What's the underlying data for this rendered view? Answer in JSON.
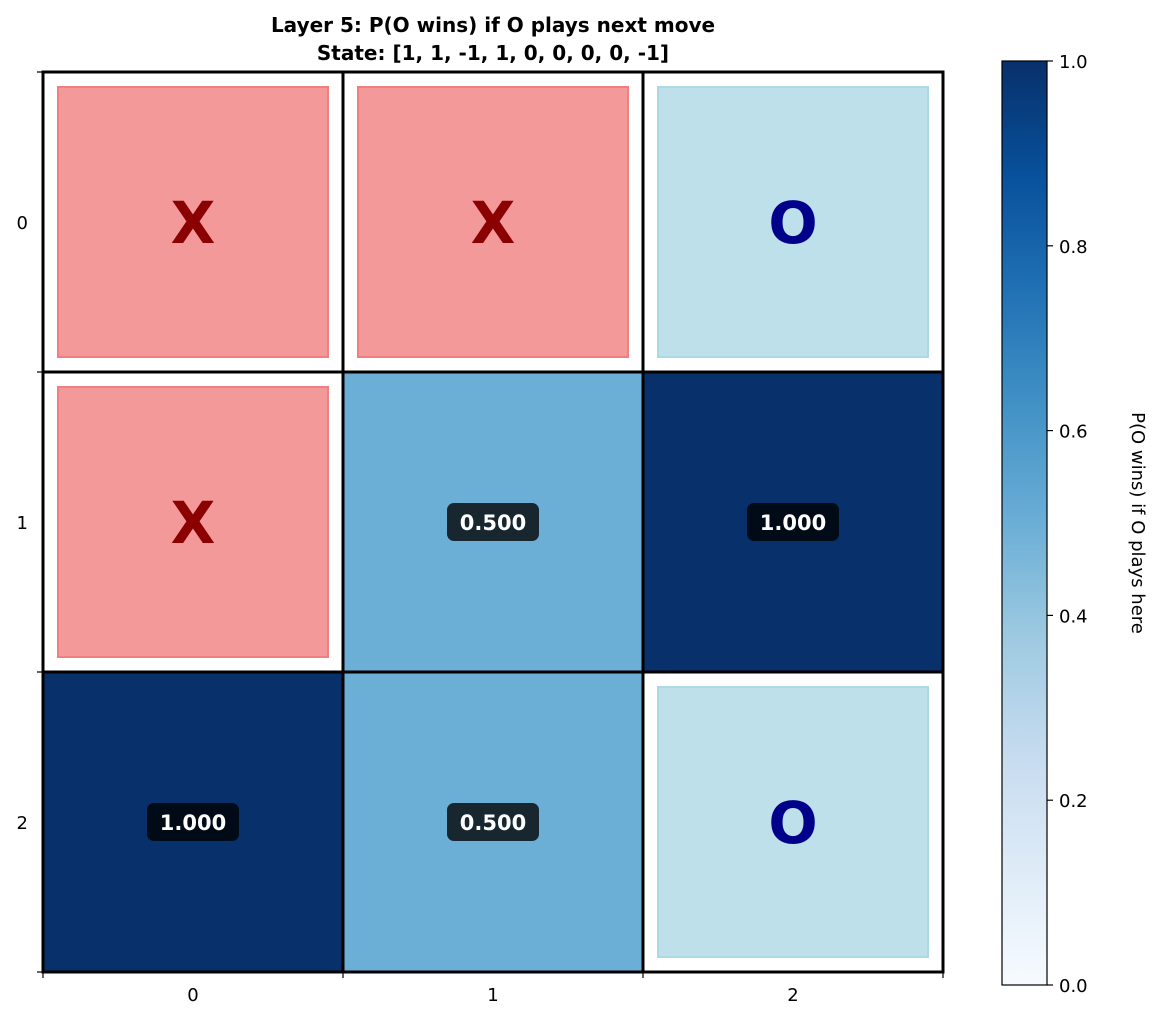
{
  "chart_data": {
    "type": "heatmap",
    "title": "Layer 5: P(O wins) if O plays next move",
    "subtitle": "State: [1, 1, -1, 1, 0, 0, 0, 0, -1]",
    "x_ticks": [
      "0",
      "1",
      "2"
    ],
    "y_ticks": [
      "0",
      "1",
      "2"
    ],
    "cells": [
      [
        {
          "piece": "X"
        },
        {
          "piece": "X"
        },
        {
          "piece": "O"
        }
      ],
      [
        {
          "piece": "X"
        },
        {
          "value": 0.5,
          "label": "0.500"
        },
        {
          "value": 1.0,
          "label": "1.000"
        }
      ],
      [
        {
          "value": 1.0,
          "label": "1.000"
        },
        {
          "value": 0.5,
          "label": "0.500"
        },
        {
          "piece": "O"
        }
      ]
    ],
    "colorbar": {
      "label": "P(O wins) if O plays here",
      "range": [
        0,
        1
      ],
      "ticks": [
        "0.0",
        "0.2",
        "0.4",
        "0.6",
        "0.8",
        "1.0"
      ],
      "colormap": [
        "#f7fbff",
        "#deebf7",
        "#c6dbef",
        "#9ecae1",
        "#6baed6",
        "#4292c6",
        "#2171b5",
        "#08519c",
        "#08306b"
      ]
    },
    "colors": {
      "x_fill": "#f08080",
      "x_text": "#8b0000",
      "o_fill": "#add8e6",
      "o_text": "#00008b",
      "label_box": "#000000"
    }
  }
}
